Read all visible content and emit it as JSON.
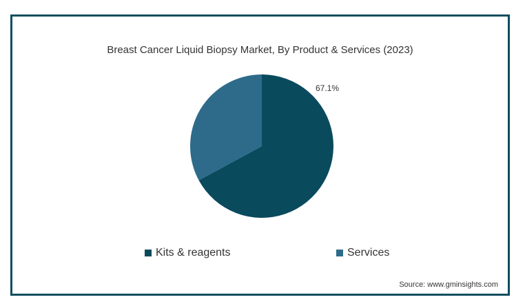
{
  "chart_data": {
    "type": "pie",
    "title": "Breast Cancer Liquid Biopsy Market, By Product & Services (2023)",
    "slices": [
      {
        "name": "Kits & reagents",
        "value": 67.1,
        "color": "#0a4a5d",
        "label": "67.1%"
      },
      {
        "name": "Services",
        "value": 32.9,
        "color": "#2e6b8a",
        "label": ""
      }
    ],
    "legend_position": "bottom"
  },
  "source": "Source: www.gminsights.com"
}
